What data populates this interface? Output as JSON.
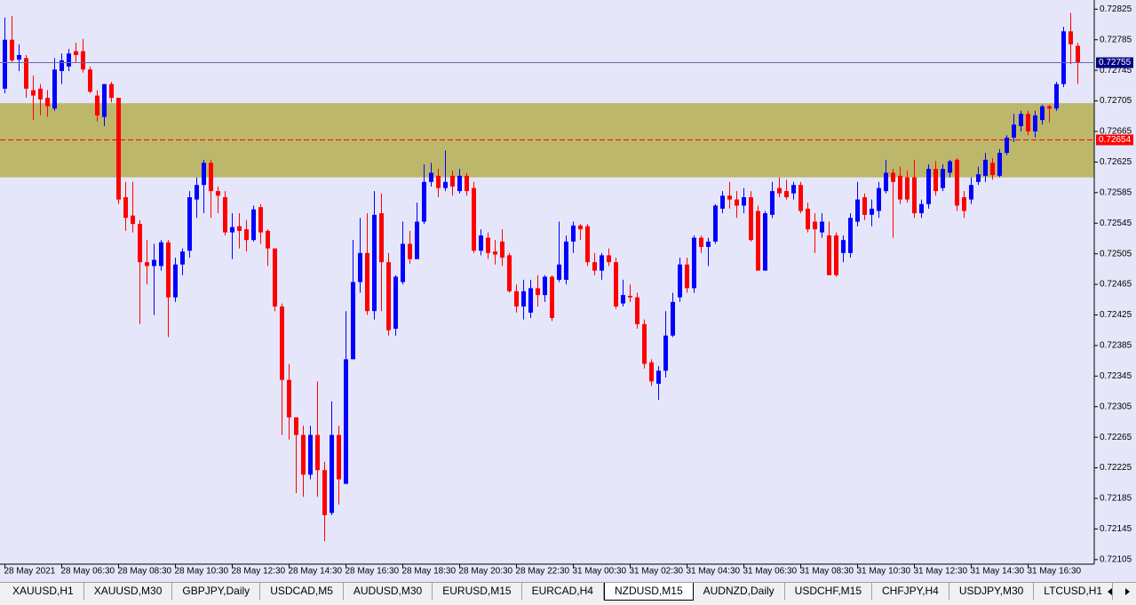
{
  "chart_data": {
    "type": "candlestick",
    "categories": [
      "28 May 2021",
      null,
      null,
      null,
      null,
      null,
      null,
      null,
      "28 May 06:30",
      null,
      null,
      null,
      null,
      null,
      null,
      null,
      "28 May 08:30",
      null,
      null,
      null,
      null,
      null,
      null,
      null,
      "28 May 10:30",
      null,
      null,
      null,
      null,
      null,
      null,
      null,
      "28 May 12:30",
      null,
      null,
      null,
      null,
      null,
      null,
      null,
      "28 May 14:30",
      null,
      null,
      null,
      null,
      null,
      null,
      null,
      "28 May 16:30",
      null,
      null,
      null,
      null,
      null,
      null,
      null,
      "28 May 18:30",
      null,
      null,
      null,
      null,
      null,
      null,
      null,
      "28 May 20:30",
      null,
      null,
      null,
      null,
      null,
      null,
      null,
      "28 May 22:30",
      null,
      null,
      null,
      null,
      null,
      null,
      null,
      "31 May 00:30",
      null,
      null,
      null,
      null,
      null,
      null,
      null,
      "31 May 02:30",
      null,
      null,
      null,
      null,
      null,
      null,
      null,
      "31 May 04:30",
      null,
      null,
      null,
      null,
      null,
      null,
      null,
      "31 May 06:30",
      null,
      null,
      null,
      null,
      null,
      null,
      null,
      "31 May 08:30",
      null,
      null,
      null,
      null,
      null,
      null,
      null,
      "31 May 10:30",
      null,
      null,
      null,
      null,
      null,
      null,
      null,
      "31 May 12:30",
      null,
      null,
      null,
      null,
      null,
      null,
      null,
      "31 May 14:30",
      null,
      null,
      null,
      null,
      null,
      null,
      null,
      "31 May 16:30",
      null,
      null,
      null,
      null,
      null,
      null,
      null
    ],
    "open": [
      0.72721,
      0.72785,
      0.72759,
      0.72761,
      0.72719,
      0.72721,
      0.72709,
      0.72695,
      0.72744,
      0.7275,
      0.7277,
      0.7277,
      0.72746,
      0.72712,
      0.72684,
      0.72727,
      0.72709,
      0.72579,
      0.72555,
      0.72544,
      0.72494,
      0.72489,
      0.72489,
      0.7252,
      0.72448,
      0.72491,
      0.72509,
      0.72576,
      0.72595,
      0.72624,
      0.72587,
      0.72579,
      0.72533,
      0.72541,
      0.72537,
      0.72523,
      0.72566,
      0.72535,
      0.72512,
      0.72436,
      0.7234,
      0.72291,
      0.72268,
      0.72216,
      0.72268,
      0.72222,
      0.72166,
      0.72268,
      0.72204,
      0.72367,
      0.72468,
      0.72506,
      0.7243,
      0.72558,
      0.72494,
      0.72407,
      0.72468,
      0.72518,
      0.72498,
      0.72547,
      0.72599,
      0.72607,
      0.72591,
      0.72607,
      0.72587,
      0.72607,
      0.72591,
      0.72509,
      0.72526,
      0.72508,
      0.72521,
      0.72503,
      0.72456,
      0.72436,
      0.72428,
      0.7246,
      0.72451,
      0.72475,
      0.72471,
      0.72471,
      0.72521,
      0.72542,
      0.72541,
      0.72494,
      0.72483,
      0.72503,
      0.72494,
      0.7244,
      0.7245,
      0.72448,
      0.72413,
      0.72363,
      0.72335,
      0.72352,
      0.72398,
      0.72448,
      0.72491,
      0.7246,
      0.72526,
      0.72514,
      0.72521,
      0.72564,
      0.72581,
      0.72576,
      0.72568,
      0.72579,
      0.72561,
      0.72483,
      0.72556,
      0.72591,
      0.72587,
      0.72584,
      0.72595,
      0.72564,
      0.72547,
      0.72533,
      0.72529,
      0.72529,
      0.72506,
      0.72506,
      0.72547,
      0.72579,
      0.72556,
      0.72561,
      0.72587,
      0.72611,
      0.72607,
      0.72605,
      0.72605,
      0.72558,
      0.7257,
      0.72616,
      0.72591,
      0.72611,
      0.72628,
      0.72579,
      0.72576,
      0.72599,
      0.72607,
      0.72624,
      0.72607,
      0.72637,
      0.72657,
      0.72672,
      0.72688,
      0.72665,
      0.7268,
      0.72698,
      0.72695,
      0.72727,
      0.72796,
      0.72777
    ],
    "high": [
      0.72814,
      0.72816,
      0.72779,
      0.72765,
      0.72738,
      0.72727,
      0.72719,
      0.72761,
      0.72767,
      0.72773,
      0.72781,
      0.72786,
      0.7275,
      0.72719,
      0.72727,
      0.7273,
      0.72709,
      0.72599,
      0.72599,
      0.72549,
      0.72523,
      0.72518,
      0.72523,
      0.72523,
      0.725,
      0.72512,
      0.72587,
      0.72605,
      0.72628,
      0.72628,
      0.72593,
      0.72587,
      0.72558,
      0.72558,
      0.72549,
      0.72568,
      0.7257,
      0.72537,
      0.72512,
      0.7244,
      0.72361,
      0.72291,
      0.7228,
      0.7228,
      0.72338,
      0.72233,
      0.72312,
      0.7228,
      0.7243,
      0.72523,
      0.72552,
      0.72558,
      0.72587,
      0.72584,
      0.72506,
      0.72477,
      0.72547,
      0.72535,
      0.72572,
      0.72622,
      0.72624,
      0.72616,
      0.7264,
      0.72614,
      0.72616,
      0.72611,
      0.72599,
      0.72537,
      0.72533,
      0.72523,
      0.72537,
      0.72506,
      0.72465,
      0.72471,
      0.72471,
      0.72477,
      0.72477,
      0.72477,
      0.72547,
      0.72529,
      0.72547,
      0.72544,
      0.72544,
      0.72506,
      0.72506,
      0.72512,
      0.725,
      0.72471,
      0.72465,
      0.72454,
      0.72419,
      0.72367,
      0.72358,
      0.7243,
      0.72454,
      0.725,
      0.725,
      0.72529,
      0.72529,
      0.72526,
      0.7257,
      0.72587,
      0.72599,
      0.72587,
      0.72591,
      0.72587,
      0.72568,
      0.72561,
      0.72599,
      0.72605,
      0.72602,
      0.72599,
      0.72599,
      0.72572,
      0.72558,
      0.72558,
      0.72547,
      0.72533,
      0.72529,
      0.72558,
      0.72599,
      0.72584,
      0.72576,
      0.72599,
      0.72628,
      0.72616,
      0.72619,
      0.72614,
      0.72628,
      0.72576,
      0.72622,
      0.72626,
      0.72622,
      0.72628,
      0.7263,
      0.72587,
      0.72605,
      0.72619,
      0.72637,
      0.7263,
      0.72642,
      0.7266,
      0.72688,
      0.72692,
      0.72692,
      0.72692,
      0.727,
      0.727,
      0.7273,
      0.72802,
      0.7282,
      0.72781
    ],
    "low": [
      0.72715,
      0.72756,
      0.72744,
      0.72709,
      0.7268,
      0.72686,
      0.72684,
      0.72692,
      0.72727,
      0.72744,
      0.72756,
      0.72742,
      0.72715,
      0.72678,
      0.72672,
      0.72703,
      0.7257,
      0.72535,
      0.72533,
      0.72413,
      0.72465,
      0.72425,
      0.72483,
      0.72396,
      0.72442,
      0.72477,
      0.725,
      0.72552,
      0.72558,
      0.72552,
      0.72558,
      0.72529,
      0.72498,
      0.72512,
      0.72508,
      0.72521,
      0.72518,
      0.72489,
      0.7243,
      0.72268,
      0.72262,
      0.72192,
      0.72187,
      0.7221,
      0.72187,
      0.72129,
      0.72163,
      0.72177,
      0.72204,
      0.72367,
      0.72454,
      0.72425,
      0.72419,
      0.7243,
      0.72398,
      0.72398,
      0.72465,
      0.72492,
      0.72498,
      0.72544,
      0.72593,
      0.72579,
      0.72587,
      0.72581,
      0.72584,
      0.72581,
      0.72506,
      0.72503,
      0.72498,
      0.72491,
      0.72489,
      0.72454,
      0.72428,
      0.72419,
      0.72421,
      0.72436,
      0.72442,
      0.72417,
      0.72468,
      0.72465,
      0.72506,
      0.72523,
      0.72489,
      0.72477,
      0.72471,
      0.72489,
      0.72433,
      0.72436,
      0.72442,
      0.72407,
      0.72355,
      0.72332,
      0.72314,
      0.72343,
      0.72396,
      0.72442,
      0.72454,
      0.72454,
      0.72506,
      0.72489,
      0.72518,
      0.72558,
      0.72564,
      0.72552,
      0.72558,
      0.72521,
      0.72483,
      0.72483,
      0.72552,
      0.72579,
      0.72576,
      0.72576,
      0.72558,
      0.72533,
      0.72506,
      0.72526,
      0.72477,
      0.72475,
      0.72494,
      0.725,
      0.72541,
      0.72549,
      0.72541,
      0.72552,
      0.72584,
      0.72526,
      0.7257,
      0.72572,
      0.72552,
      0.72552,
      0.72564,
      0.72581,
      0.72587,
      0.72605,
      0.72561,
      0.72552,
      0.7257,
      0.72595,
      0.72599,
      0.72602,
      0.72605,
      0.72634,
      0.72651,
      0.72665,
      0.7266,
      0.72657,
      0.72674,
      0.72677,
      0.72692,
      0.72723,
      0.72753,
      0.72727
    ],
    "close": [
      0.72785,
      0.72758,
      0.72765,
      0.72721,
      0.72712,
      0.72707,
      0.72698,
      0.72746,
      0.72758,
      0.72767,
      0.72765,
      0.72746,
      0.72717,
      0.72686,
      0.72727,
      0.72709,
      0.72576,
      0.72552,
      0.72544,
      0.72494,
      0.72489,
      0.72497,
      0.7252,
      0.72448,
      0.72491,
      0.72508,
      0.72579,
      0.72595,
      0.72624,
      0.72587,
      0.72581,
      0.72533,
      0.7254,
      0.72535,
      0.72523,
      0.72563,
      0.72533,
      0.72512,
      0.72436,
      0.7234,
      0.72291,
      0.72268,
      0.72216,
      0.72268,
      0.72222,
      0.72163,
      0.72268,
      0.7221,
      0.72367,
      0.72468,
      0.72506,
      0.7243,
      0.72556,
      0.72494,
      0.72405,
      0.72475,
      0.72518,
      0.72498,
      0.72547,
      0.72599,
      0.72611,
      0.72591,
      0.72599,
      0.72593,
      0.72607,
      0.72587,
      0.72509,
      0.72529,
      0.72506,
      0.72504,
      0.725,
      0.72456,
      0.72436,
      0.72456,
      0.7246,
      0.72451,
      0.72475,
      0.72421,
      0.72491,
      0.72521,
      0.72542,
      0.72537,
      0.72494,
      0.72483,
      0.72503,
      0.72494,
      0.72436,
      0.72451,
      0.72448,
      0.72413,
      0.72361,
      0.72338,
      0.72352,
      0.72398,
      0.72442,
      0.72491,
      0.7246,
      0.72526,
      0.72514,
      0.72521,
      0.72568,
      0.72581,
      0.72576,
      0.72568,
      0.72579,
      0.72523,
      0.72483,
      0.72558,
      0.72587,
      0.72584,
      0.72579,
      0.72595,
      0.72561,
      0.72537,
      0.72537,
      0.72547,
      0.72477,
      0.72477,
      0.72523,
      0.72552,
      0.72576,
      0.72556,
      0.72564,
      0.72591,
      0.72611,
      0.72599,
      0.72576,
      0.72576,
      0.72558,
      0.7257,
      0.72616,
      0.72587,
      0.72616,
      0.72626,
      0.72568,
      0.72561,
      0.72595,
      0.72609,
      0.72628,
      0.72608,
      0.72637,
      0.72657,
      0.72674,
      0.72688,
      0.72665,
      0.72686,
      0.72698,
      0.72695,
      0.72727,
      0.72796,
      0.72779,
      0.72755
    ],
    "ylim": [
      0.72099,
      0.72837
    ],
    "yticks": [
      0.72825,
      0.72785,
      0.72745,
      0.72705,
      0.72665,
      0.72625,
      0.72585,
      0.72545,
      0.72505,
      0.72465,
      0.72425,
      0.72385,
      0.72345,
      0.72305,
      0.72265,
      0.72225,
      0.72185,
      0.72145,
      0.72105
    ],
    "bull_color": "#0000ff",
    "bear_color": "#ff0000",
    "zone": [
      0.72605,
      0.72702
    ],
    "zone_color": "#bdb76b",
    "bid": 0.72755,
    "bid_color": "#000080",
    "level": 0.72654,
    "level_color": "#ff0000"
  },
  "tabs": [
    "XAUUSD,H1",
    "XAUUSD,M30",
    "GBPJPY,Daily",
    "USDCAD,M5",
    "AUDUSD,M30",
    "EURUSD,M15",
    "EURCAD,H4",
    "NZDUSD,M15",
    "AUDNZD,Daily",
    "USDCHF,M15",
    "CHFJPY,H4",
    "USDJPY,M30",
    "LTCUSD,H1"
  ],
  "active_tab": 7
}
